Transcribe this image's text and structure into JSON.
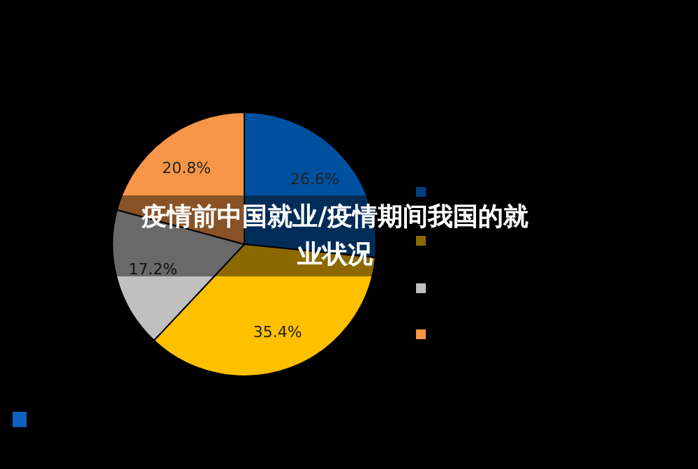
{
  "chart_data": {
    "type": "pie",
    "title": "疫情前中国就业/疫情期间我国的就业状况",
    "categories": [
      null,
      null,
      null,
      null
    ],
    "values": [
      26.6,
      35.4,
      17.2,
      20.8
    ],
    "colors": [
      "#0050a0",
      "#ffc000",
      "#c0c0c0",
      "#f79646"
    ],
    "value_labels": [
      "26.6%",
      "35.4%",
      "17.2%",
      "20.8%"
    ]
  }
}
